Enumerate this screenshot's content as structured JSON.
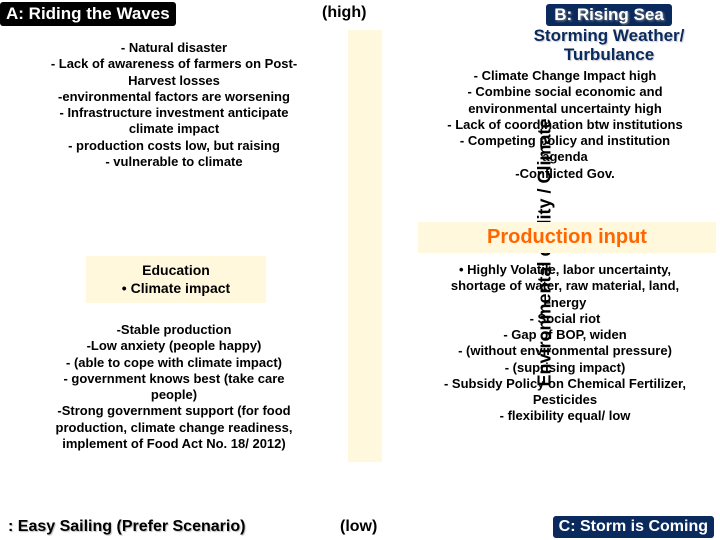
{
  "labels": {
    "a": "A: Riding the Waves",
    "b_line1": "B: Rising Sea",
    "b_line2": "Storming Weather/",
    "b_line3": "Turbulance",
    "c": ": Easy Sailing (Prefer Scenario)",
    "d": "C: Storm is Coming"
  },
  "axis": {
    "y": "Environmental quality / Climate",
    "high": "(high)",
    "low": "(low)"
  },
  "quadA": {
    "l1": "- Natural disaster",
    "l2": "- Lack of awareness of farmers on Post-",
    "l3": "Harvest losses",
    "l4": "-environmental factors are worsening",
    "l5": "- Infrastructure investment anticipate",
    "l6": "climate impact",
    "l7": "- production costs low, but raising",
    "l8": "- vulnerable to climate"
  },
  "education": {
    "l1": "Education",
    "l2": "• Climate impact"
  },
  "quadC": {
    "l1": "-Stable production",
    "l2": "-Low anxiety (people happy)",
    "l3": "- (able to cope with climate impact)",
    "l4": "- government knows best (take care",
    "l5": "people)",
    "l6": "-Strong government support (for food",
    "l7": "production, climate change readiness,",
    "l8": "implement of Food Act No. 18/ 2012)"
  },
  "quadB": {
    "l1": "- Climate Change Impact high",
    "l2": "- Combine social economic and",
    "l3": "environmental uncertainty high",
    "l4": "- Lack of coordination btw institutions",
    "l5": "- Competing policy and institution",
    "l6": "agenda",
    "l7": "-Conflicted Gov."
  },
  "orange_title": "Production input",
  "quadD": {
    "l1": "• Highly Volatile, labor uncertainty,",
    "l2": "shortage of water, raw material, land,",
    "l3": "energy",
    "l4": "- Social riot",
    "l5": "- Gap of BOP, widen",
    "l6": "- (without environmental pressure)",
    "l7": "- (suprising impact)",
    "l8": "- Subsidy Policy on Chemical Fertilizer,",
    "l9": "Pesticides",
    "l10": "- flexibility equal/ low"
  },
  "colors": {
    "dark_blue": "#0a2a5e",
    "cream": "#fff8dc",
    "orange": "#ff6600",
    "black": "#000000",
    "white": "#ffffff"
  }
}
